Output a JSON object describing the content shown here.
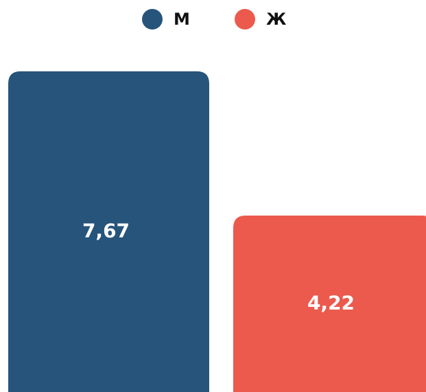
{
  "chart_data": {
    "type": "bar",
    "series": [
      {
        "name": "М",
        "color": "#27547b",
        "values": [
          7.67
        ],
        "value_labels": [
          "7,67"
        ]
      },
      {
        "name": "Ж",
        "color": "#eb5a4c",
        "values": [
          4.22
        ],
        "value_labels": [
          "4,22"
        ]
      }
    ]
  }
}
